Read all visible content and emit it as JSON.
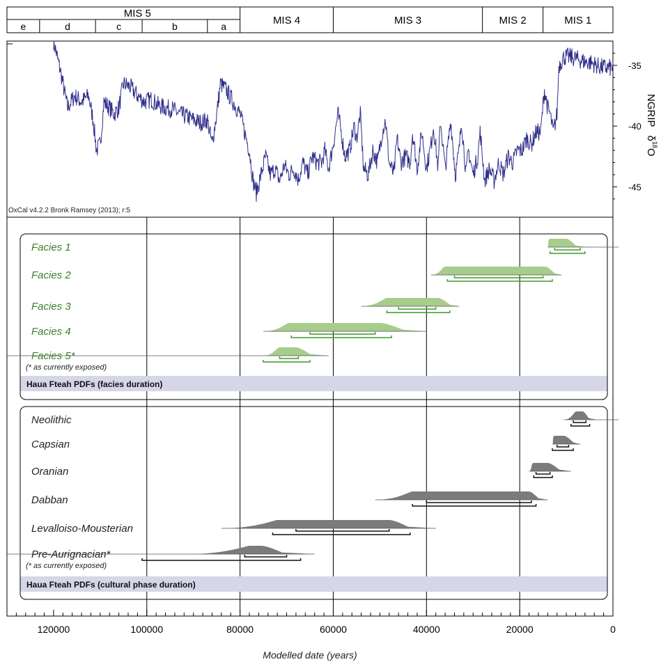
{
  "chart_data": [
    {
      "type": "line",
      "name_hidden": "",
      "xlabel": "",
      "ylabel": "NGRIP δ¹⁸O",
      "ylabel_main": "NGRIP",
      "ylabel_symbol": "δ",
      "ylabel_sup": "18",
      "ylabel_end": "O",
      "credit": "OxCal v4.2.2 Bronk Ramsey (2013); r:5",
      "yticks": [
        -35,
        -40,
        -45
      ],
      "ylim": [
        -47.5,
        -33
      ],
      "color": "#2e2e8a",
      "x_start": 120000,
      "x_end": 0,
      "anchors": [
        [
          120000,
          -33
        ],
        [
          118500,
          -35.5
        ],
        [
          117000,
          -38.5
        ],
        [
          115500,
          -37.5
        ],
        [
          114000,
          -38
        ],
        [
          112500,
          -37.5
        ],
        [
          111500,
          -39.5
        ],
        [
          110800,
          -42
        ],
        [
          110000,
          -41.5
        ],
        [
          109200,
          -38
        ],
        [
          108000,
          -38.5
        ],
        [
          107000,
          -39
        ],
        [
          106000,
          -38.5
        ],
        [
          105000,
          -36.5
        ],
        [
          103500,
          -36.8
        ],
        [
          102000,
          -37.5
        ],
        [
          100500,
          -38
        ],
        [
          99000,
          -37.8
        ],
        [
          97500,
          -38.3
        ],
        [
          96000,
          -38.5
        ],
        [
          94500,
          -38.6
        ],
        [
          93000,
          -39
        ],
        [
          91500,
          -39.2
        ],
        [
          90000,
          -39.5
        ],
        [
          88500,
          -39.7
        ],
        [
          87000,
          -39.5
        ],
        [
          86000,
          -41.5
        ],
        [
          85000,
          -39
        ],
        [
          84200,
          -36.5
        ],
        [
          83000,
          -37
        ],
        [
          81500,
          -38
        ],
        [
          80000,
          -39
        ],
        [
          79000,
          -40.5
        ],
        [
          78000,
          -42
        ],
        [
          77200,
          -44.5
        ],
        [
          76500,
          -45.5
        ],
        [
          75500,
          -44
        ],
        [
          74500,
          -42.5
        ],
        [
          73500,
          -44
        ],
        [
          72500,
          -43.5
        ],
        [
          71500,
          -44.5
        ],
        [
          70500,
          -43.2
        ],
        [
          69500,
          -44
        ],
        [
          68500,
          -43.5
        ],
        [
          67500,
          -44.4
        ],
        [
          66500,
          -43
        ],
        [
          65500,
          -44
        ],
        [
          64500,
          -42.5
        ],
        [
          63500,
          -43
        ],
        [
          62500,
          -43
        ],
        [
          61800,
          -42
        ],
        [
          61000,
          -43.5
        ],
        [
          60000,
          -41.5
        ],
        [
          59000,
          -39
        ],
        [
          58500,
          -40
        ],
        [
          57500,
          -42.5
        ],
        [
          56500,
          -42
        ],
        [
          55500,
          -40
        ],
        [
          55000,
          -41
        ],
        [
          54200,
          -39
        ],
        [
          53500,
          -43.5
        ],
        [
          52500,
          -44
        ],
        [
          51500,
          -42
        ],
        [
          50500,
          -43
        ],
        [
          49500,
          -40.5
        ],
        [
          48800,
          -39.5
        ],
        [
          48000,
          -43
        ],
        [
          47000,
          -44
        ],
        [
          46300,
          -41
        ],
        [
          45500,
          -43
        ],
        [
          44500,
          -42.5
        ],
        [
          43500,
          -43
        ],
        [
          43000,
          -40.5
        ],
        [
          42000,
          -43.5
        ],
        [
          41000,
          -40.5
        ],
        [
          40000,
          -43.5
        ],
        [
          39000,
          -41.5
        ],
        [
          38500,
          -40
        ],
        [
          37500,
          -43.5
        ],
        [
          37000,
          -39.5
        ],
        [
          36000,
          -43.5
        ],
        [
          35500,
          -42
        ],
        [
          34800,
          -39.5
        ],
        [
          33800,
          -44
        ],
        [
          33000,
          -42
        ],
        [
          32500,
          -39.5
        ],
        [
          31500,
          -44
        ],
        [
          31000,
          -42
        ],
        [
          30000,
          -44
        ],
        [
          29000,
          -42.5
        ],
        [
          28500,
          -40.5
        ],
        [
          27500,
          -44.5
        ],
        [
          26500,
          -43.5
        ],
        [
          25500,
          -44.5
        ],
        [
          24500,
          -43
        ],
        [
          23500,
          -44
        ],
        [
          22500,
          -42.5
        ],
        [
          21500,
          -43
        ],
        [
          20500,
          -42
        ],
        [
          19500,
          -42
        ],
        [
          18500,
          -41
        ],
        [
          17500,
          -41.5
        ],
        [
          16500,
          -40.5
        ],
        [
          15500,
          -40.5
        ],
        [
          14700,
          -37
        ],
        [
          14000,
          -38.5
        ],
        [
          13500,
          -39
        ],
        [
          12800,
          -40.5
        ],
        [
          12000,
          -39
        ],
        [
          11600,
          -35
        ],
        [
          10500,
          -34.3
        ],
        [
          9000,
          -34.3
        ],
        [
          7500,
          -34.5
        ],
        [
          6000,
          -34.7
        ],
        [
          4500,
          -34.8
        ],
        [
          3000,
          -35.1
        ],
        [
          1500,
          -35.2
        ],
        [
          0,
          -35.2
        ]
      ]
    },
    {
      "type": "range-plot",
      "xlabel": "Modelled date (years)",
      "xlim": [
        130000,
        0
      ],
      "xticks": [
        120000,
        100000,
        80000,
        60000,
        40000,
        20000,
        0
      ],
      "mis_top": [
        {
          "label": "MIS 4",
          "from": 80000,
          "to": 60000
        },
        {
          "label": "MIS 3",
          "from": 60000,
          "to": 28000
        },
        {
          "label": "MIS 2",
          "from": 28000,
          "to": 15000
        },
        {
          "label": "MIS 1",
          "from": 15000,
          "to": 0
        }
      ],
      "mis5": {
        "label": "MIS 5",
        "from": 130000,
        "to": 80000,
        "subs": [
          {
            "label": "e",
            "from": 130000,
            "to": 123000
          },
          {
            "label": "d",
            "from": 123000,
            "to": 111000
          },
          {
            "label": "c",
            "from": 111000,
            "to": 101000
          },
          {
            "label": "b",
            "from": 101000,
            "to": 87000
          },
          {
            "label": "a",
            "from": 87000,
            "to": 80000
          }
        ]
      },
      "groups": [
        {
          "caption": "Haua Fteah PDFs (facies duration)",
          "color": "#a8cc8c",
          "label_color": "#3d7d2a",
          "bracket_color": "#3d9a2a",
          "phases": [
            {
              "label": "Facies 1",
              "note": "",
              "tail_from": null,
              "shape": [
                14000,
                13500,
                10000,
                8000,
                5500
              ],
              "brackets": [
                [
                  12500,
                  7000
                ],
                [
                  13500,
                  6000
                ]
              ],
              "line_right": true
            },
            {
              "label": "Facies 2",
              "note": "",
              "tail_from": null,
              "shape": [
                39000,
                36000,
                14500,
                12500,
                11000
              ],
              "brackets": [
                [
                  34000,
                  15000
                ],
                [
                  35500,
                  13000
                ]
              ],
              "line_right": false
            },
            {
              "label": "Facies 3",
              "note": "",
              "tail_from": null,
              "shape": [
                54000,
                48500,
                37500,
                35000,
                33000
              ],
              "brackets": [
                [
                  46000,
                  38000
                ],
                [
                  48500,
                  35000
                ]
              ],
              "line_right": false
            },
            {
              "label": "Facies 4",
              "note": "",
              "tail_from": null,
              "shape": [
                75000,
                69500,
                50000,
                45000,
                40000
              ],
              "brackets": [
                [
                  65000,
                  51000
                ],
                [
                  69000,
                  47500
                ]
              ],
              "line_right": false
            },
            {
              "label": "Facies 5*",
              "note": "(* as currently exposed)",
              "tail_from": 130000,
              "shape": [
                75000,
                71500,
                68000,
                65000,
                61000
              ],
              "brackets": [
                [
                  71500,
                  67500
                ],
                [
                  75000,
                  65000
                ]
              ],
              "line_right": false
            }
          ]
        },
        {
          "caption": "Haua Fteah PDFs (cultural phase duration)",
          "color": "#7b7b7b",
          "label_color": "#222222",
          "bracket_color": "#111111",
          "phases": [
            {
              "label": "Neolithic",
              "note": "",
              "tail_from": null,
              "shape": [
                10500,
                7800,
                6500,
                5200,
                3500
              ],
              "brackets": [
                [
                  8500,
                  5800
                ],
                [
                  9000,
                  5000
                ]
              ],
              "line_right": true
            },
            {
              "label": "Capsian",
              "note": "",
              "tail_from": null,
              "shape": [
                13000,
                12500,
                10500,
                8500,
                7000
              ],
              "brackets": [
                [
                  12000,
                  9500
                ],
                [
                  13000,
                  8500
                ]
              ],
              "line_right": false
            },
            {
              "label": "Oranian",
              "note": "",
              "tail_from": null,
              "shape": [
                18000,
                17000,
                14000,
                11500,
                9000
              ],
              "brackets": [
                [
                  16500,
                  13500
                ],
                [
                  17000,
                  13000
                ]
              ],
              "line_right": false
            },
            {
              "label": "Dabban",
              "note": "",
              "tail_from": null,
              "shape": [
                51000,
                43000,
                18000,
                16000,
                14000
              ],
              "brackets": [
                [
                  40000,
                  17500
                ],
                [
                  43000,
                  16500
                ]
              ],
              "line_right": false
            },
            {
              "label": "Levalloiso-Mousterian",
              "note": "",
              "tail_from": null,
              "shape": [
                84000,
                72000,
                48000,
                44000,
                38000
              ],
              "brackets": [
                [
                  68000,
                  48000
                ],
                [
                  73000,
                  43500
                ]
              ],
              "line_right": false
            },
            {
              "label": "Pre-Aurignacian*",
              "note": "(* as currently exposed)",
              "tail_from": 130000,
              "shape": [
                91000,
                78000,
                75500,
                71000,
                64000
              ],
              "brackets": [
                [
                  79000,
                  70000
                ],
                [
                  101000,
                  67000
                ]
              ],
              "line_right": false
            }
          ]
        }
      ]
    }
  ]
}
